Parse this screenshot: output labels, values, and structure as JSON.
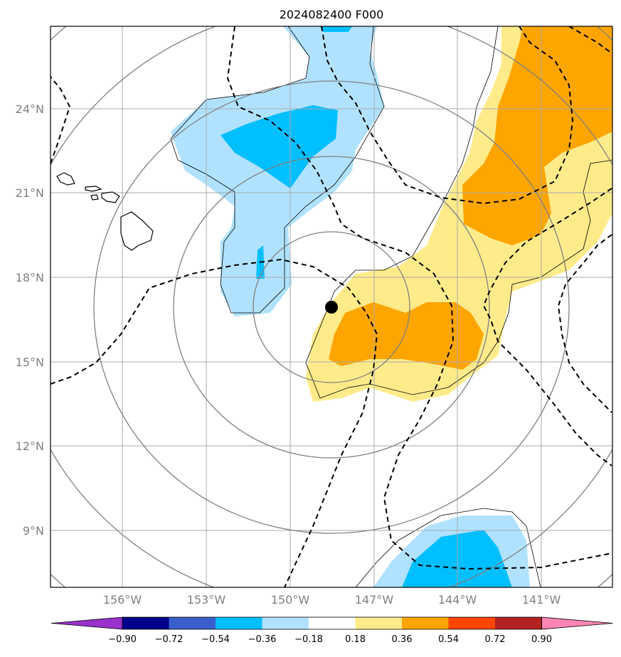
{
  "title": "2024082400 F000",
  "lat_labels": [
    "24°N",
    "21°N",
    "18°N",
    "15°N",
    "12°N",
    "9°N"
  ],
  "lon_labels": [
    "156°W",
    "153°W",
    "150°W",
    "147°W",
    "144°W",
    "141°W"
  ],
  "colorbar": {
    "ticks": [
      "−0.90",
      "−0.72",
      "−0.54",
      "−0.36",
      "−0.18",
      "0.18",
      "0.36",
      "0.54",
      "0.72",
      "0.90"
    ],
    "colors": [
      "#9932cc",
      "#00008b",
      "#3a5fcd",
      "#00bfff",
      "#b0e2ff",
      "#ffffff",
      "#ffeb8a",
      "#ffa500",
      "#ff4500",
      "#b22222",
      "#ff86b4"
    ]
  },
  "colors": {
    "light_blue": "#b0e2ff",
    "blue": "#00bfff",
    "light_yellow": "#ffeb8a",
    "orange": "#ffa500",
    "grid": "#a9a9a9",
    "rings": "#808080"
  },
  "marker": {
    "lat": 16.8,
    "lon": -148.3
  }
}
